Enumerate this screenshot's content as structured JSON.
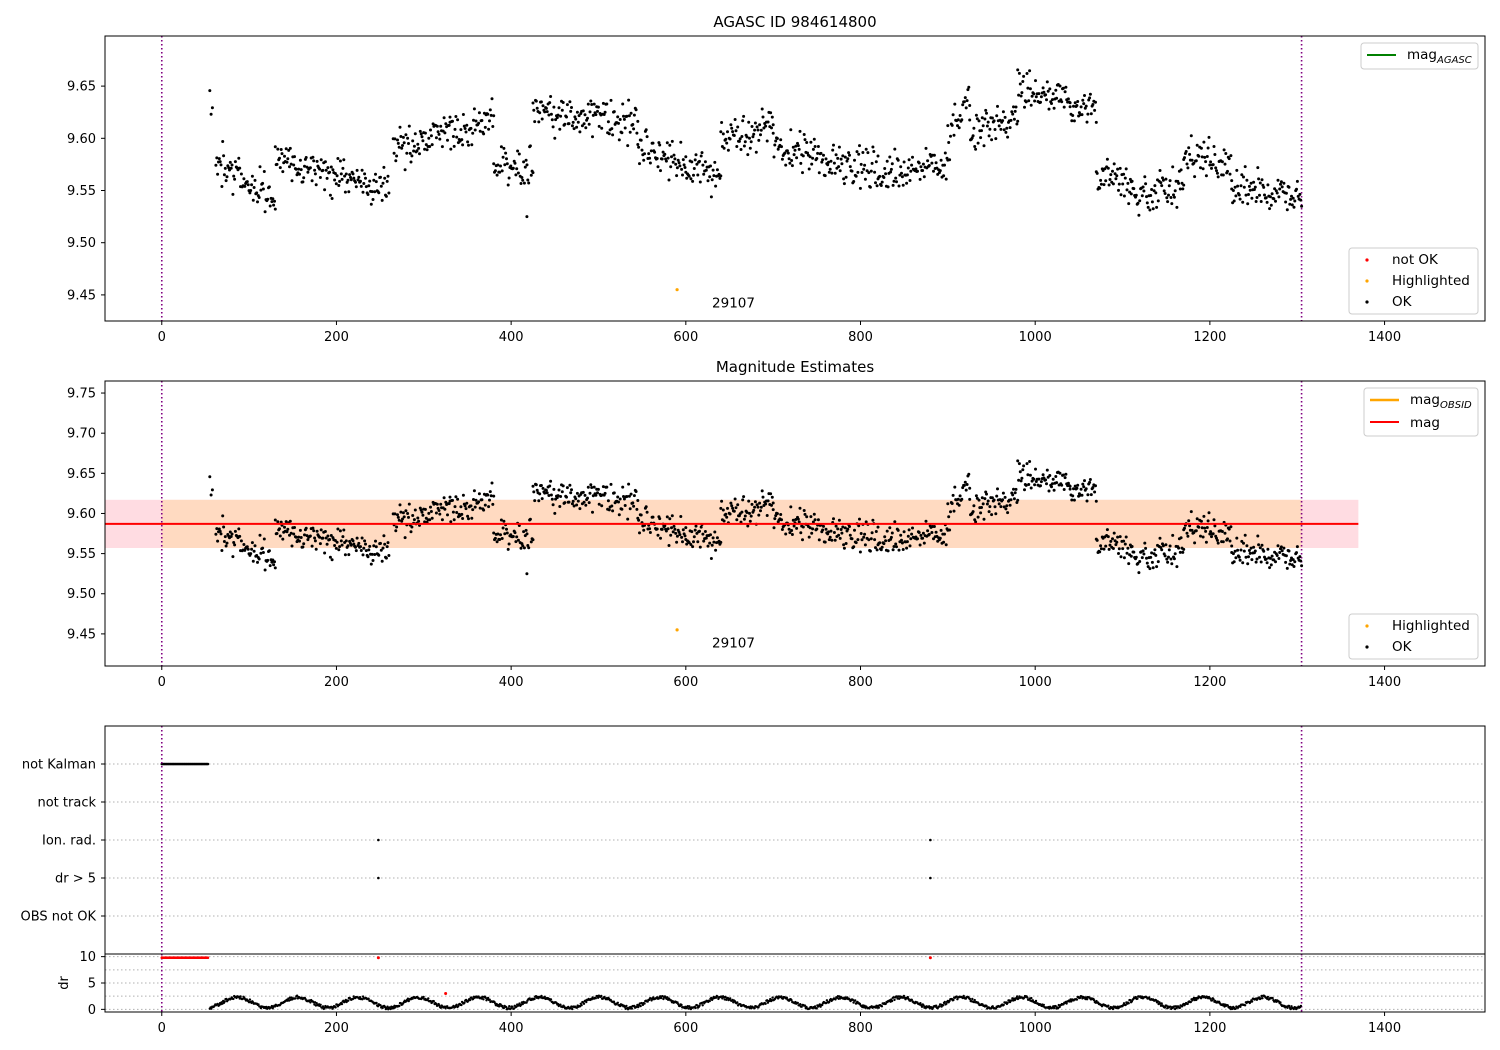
{
  "figure": {
    "vline_color": "#800080"
  },
  "colors": {
    "ok": "#000000",
    "highlighted": "#ffa500",
    "not_ok": "#ff0000",
    "mag_agasc": "#008000",
    "mag_obsid": "#ffa500",
    "mag": "#ff0000",
    "band_mag": "#ffc0cb",
    "band_obsid": "#ffdab9",
    "grid": "#b0b0b0"
  },
  "chart_data": [
    {
      "id": "agasc",
      "type": "scatter",
      "title": "AGASC ID 984614800",
      "xlim": [
        -65,
        1515
      ],
      "ylim": [
        9.425,
        9.698
      ],
      "xticks": [
        0,
        200,
        400,
        600,
        800,
        1000,
        1200,
        1400
      ],
      "yticks": [
        9.45,
        9.5,
        9.55,
        9.6,
        9.65
      ],
      "ytick_labels": [
        "9.45",
        "9.50",
        "9.55",
        "9.60",
        "9.65"
      ],
      "vlines": [
        0,
        1305
      ],
      "legend_lines": [
        {
          "label": "mag",
          "sub": "AGASC",
          "color": "#008000"
        }
      ],
      "legend_points": [
        {
          "label": "not OK",
          "color": "#ff0000"
        },
        {
          "label": "Highlighted",
          "color": "#ffa500"
        },
        {
          "label": "OK",
          "color": "#000000"
        }
      ],
      "annotation": {
        "text": "29107",
        "x": 630,
        "y": 9.438
      },
      "highlighted_points": [
        [
          590,
          9.455
        ]
      ],
      "ok_series": {
        "segments": [
          {
            "x": [
              55,
              58
            ],
            "y": [
              9.65,
              9.62
            ]
          },
          {
            "x": [
              62,
              130
            ],
            "y": [
              9.58,
              9.54
            ]
          },
          {
            "x": [
              130,
              260
            ],
            "y": [
              9.58,
              9.55
            ]
          },
          {
            "x": [
              265,
              330
            ],
            "y": [
              9.59,
              9.61
            ]
          },
          {
            "x": [
              330,
              380
            ],
            "y": [
              9.61,
              9.62
            ]
          },
          {
            "x": [
              380,
              425
            ],
            "y": [
              9.58,
              9.57
            ]
          },
          {
            "x": [
              425,
              545
            ],
            "y": [
              9.625,
              9.615
            ]
          },
          {
            "x": [
              545,
              600
            ],
            "y": [
              9.59,
              9.575
            ]
          },
          {
            "x": [
              600,
              640
            ],
            "y": [
              9.57,
              9.565
            ]
          },
          {
            "x": [
              640,
              700
            ],
            "y": [
              9.6,
              9.61
            ]
          },
          {
            "x": [
              700,
              820
            ],
            "y": [
              9.59,
              9.57
            ]
          },
          {
            "x": [
              820,
              900
            ],
            "y": [
              9.565,
              9.575
            ]
          },
          {
            "x": [
              900,
              925
            ],
            "y": [
              9.6,
              9.64
            ]
          },
          {
            "x": [
              925,
              980
            ],
            "y": [
              9.61,
              9.615
            ]
          },
          {
            "x": [
              980,
              1040
            ],
            "y": [
              9.645,
              9.64
            ]
          },
          {
            "x": [
              1040,
              1070
            ],
            "y": [
              9.625,
              9.635
            ]
          },
          {
            "x": [
              1070,
              1110
            ],
            "y": [
              9.57,
              9.555
            ]
          },
          {
            "x": [
              1110,
              1170
            ],
            "y": [
              9.545,
              9.555
            ]
          },
          {
            "x": [
              1170,
              1225
            ],
            "y": [
              9.585,
              9.575
            ]
          },
          {
            "x": [
              1225,
              1305
            ],
            "y": [
              9.55,
              9.545
            ]
          }
        ],
        "outliers": [
          [
            418,
            9.525
          ]
        ]
      }
    },
    {
      "id": "estimates",
      "type": "scatter",
      "title": "Magnitude Estimates",
      "xlim": [
        -65,
        1515
      ],
      "ylim": [
        9.41,
        9.765
      ],
      "xticks": [
        0,
        200,
        400,
        600,
        800,
        1000,
        1200,
        1400
      ],
      "yticks": [
        9.45,
        9.5,
        9.55,
        9.6,
        9.65,
        9.7,
        9.75
      ],
      "ytick_labels": [
        "9.45",
        "9.50",
        "9.55",
        "9.60",
        "9.65",
        "9.70",
        "9.75"
      ],
      "vlines": [
        0,
        1305
      ],
      "mag_line": {
        "value": 9.587,
        "x_range": [
          -65,
          1370
        ]
      },
      "mag_band": {
        "y_range": [
          9.557,
          9.617
        ],
        "x_range": [
          -65,
          1370
        ]
      },
      "obsid_band": {
        "y_range": [
          9.557,
          9.617
        ],
        "x_range": [
          0,
          1305
        ]
      },
      "legend_lines": [
        {
          "label": "mag",
          "sub": "OBSID",
          "color": "#ffa500"
        },
        {
          "label": "mag",
          "sub": "",
          "color": "#ff0000"
        }
      ],
      "legend_points": [
        {
          "label": "Highlighted",
          "color": "#ffa500"
        },
        {
          "label": "OK",
          "color": "#000000"
        }
      ],
      "annotation": {
        "text": "29107",
        "x": 630,
        "y": 9.433
      },
      "highlighted_points": [
        [
          590,
          9.455
        ]
      ]
    },
    {
      "id": "flags",
      "type": "scatter",
      "xlim": [
        -65,
        1515
      ],
      "categories": [
        "not Kalman",
        "not track",
        "Ion. rad.",
        "dr > 5",
        "OBS not OK"
      ],
      "flag_points": {
        "not Kalman": {
          "x_range": [
            0,
            53
          ]
        },
        "not track": {
          "x_range": []
        },
        "Ion. rad.": {
          "x": [
            248,
            880
          ]
        },
        "dr > 5": {
          "x": [
            248,
            880
          ]
        },
        "OBS not OK": {
          "x_range": []
        }
      }
    },
    {
      "id": "dr",
      "type": "scatter",
      "ylabel": "dr",
      "xlim": [
        -65,
        1515
      ],
      "ylim": [
        -0.5,
        10.5
      ],
      "xticks": [
        0,
        200,
        400,
        600,
        800,
        1000,
        1200,
        1400
      ],
      "yticks": [
        0,
        5,
        10
      ],
      "ytick_labels": [
        "0",
        "5",
        "10"
      ],
      "vlines": [
        0,
        1305
      ],
      "red_points": {
        "x_range": [
          0,
          53
        ],
        "y": 9.8,
        "extra_x": [
          248,
          880
        ]
      },
      "black_points": {
        "x_range": [
          55,
          1305
        ],
        "mean": 1.3,
        "amplitude": 1.0
      },
      "red_outlier": [
        [
          325,
          3.0
        ]
      ]
    }
  ]
}
